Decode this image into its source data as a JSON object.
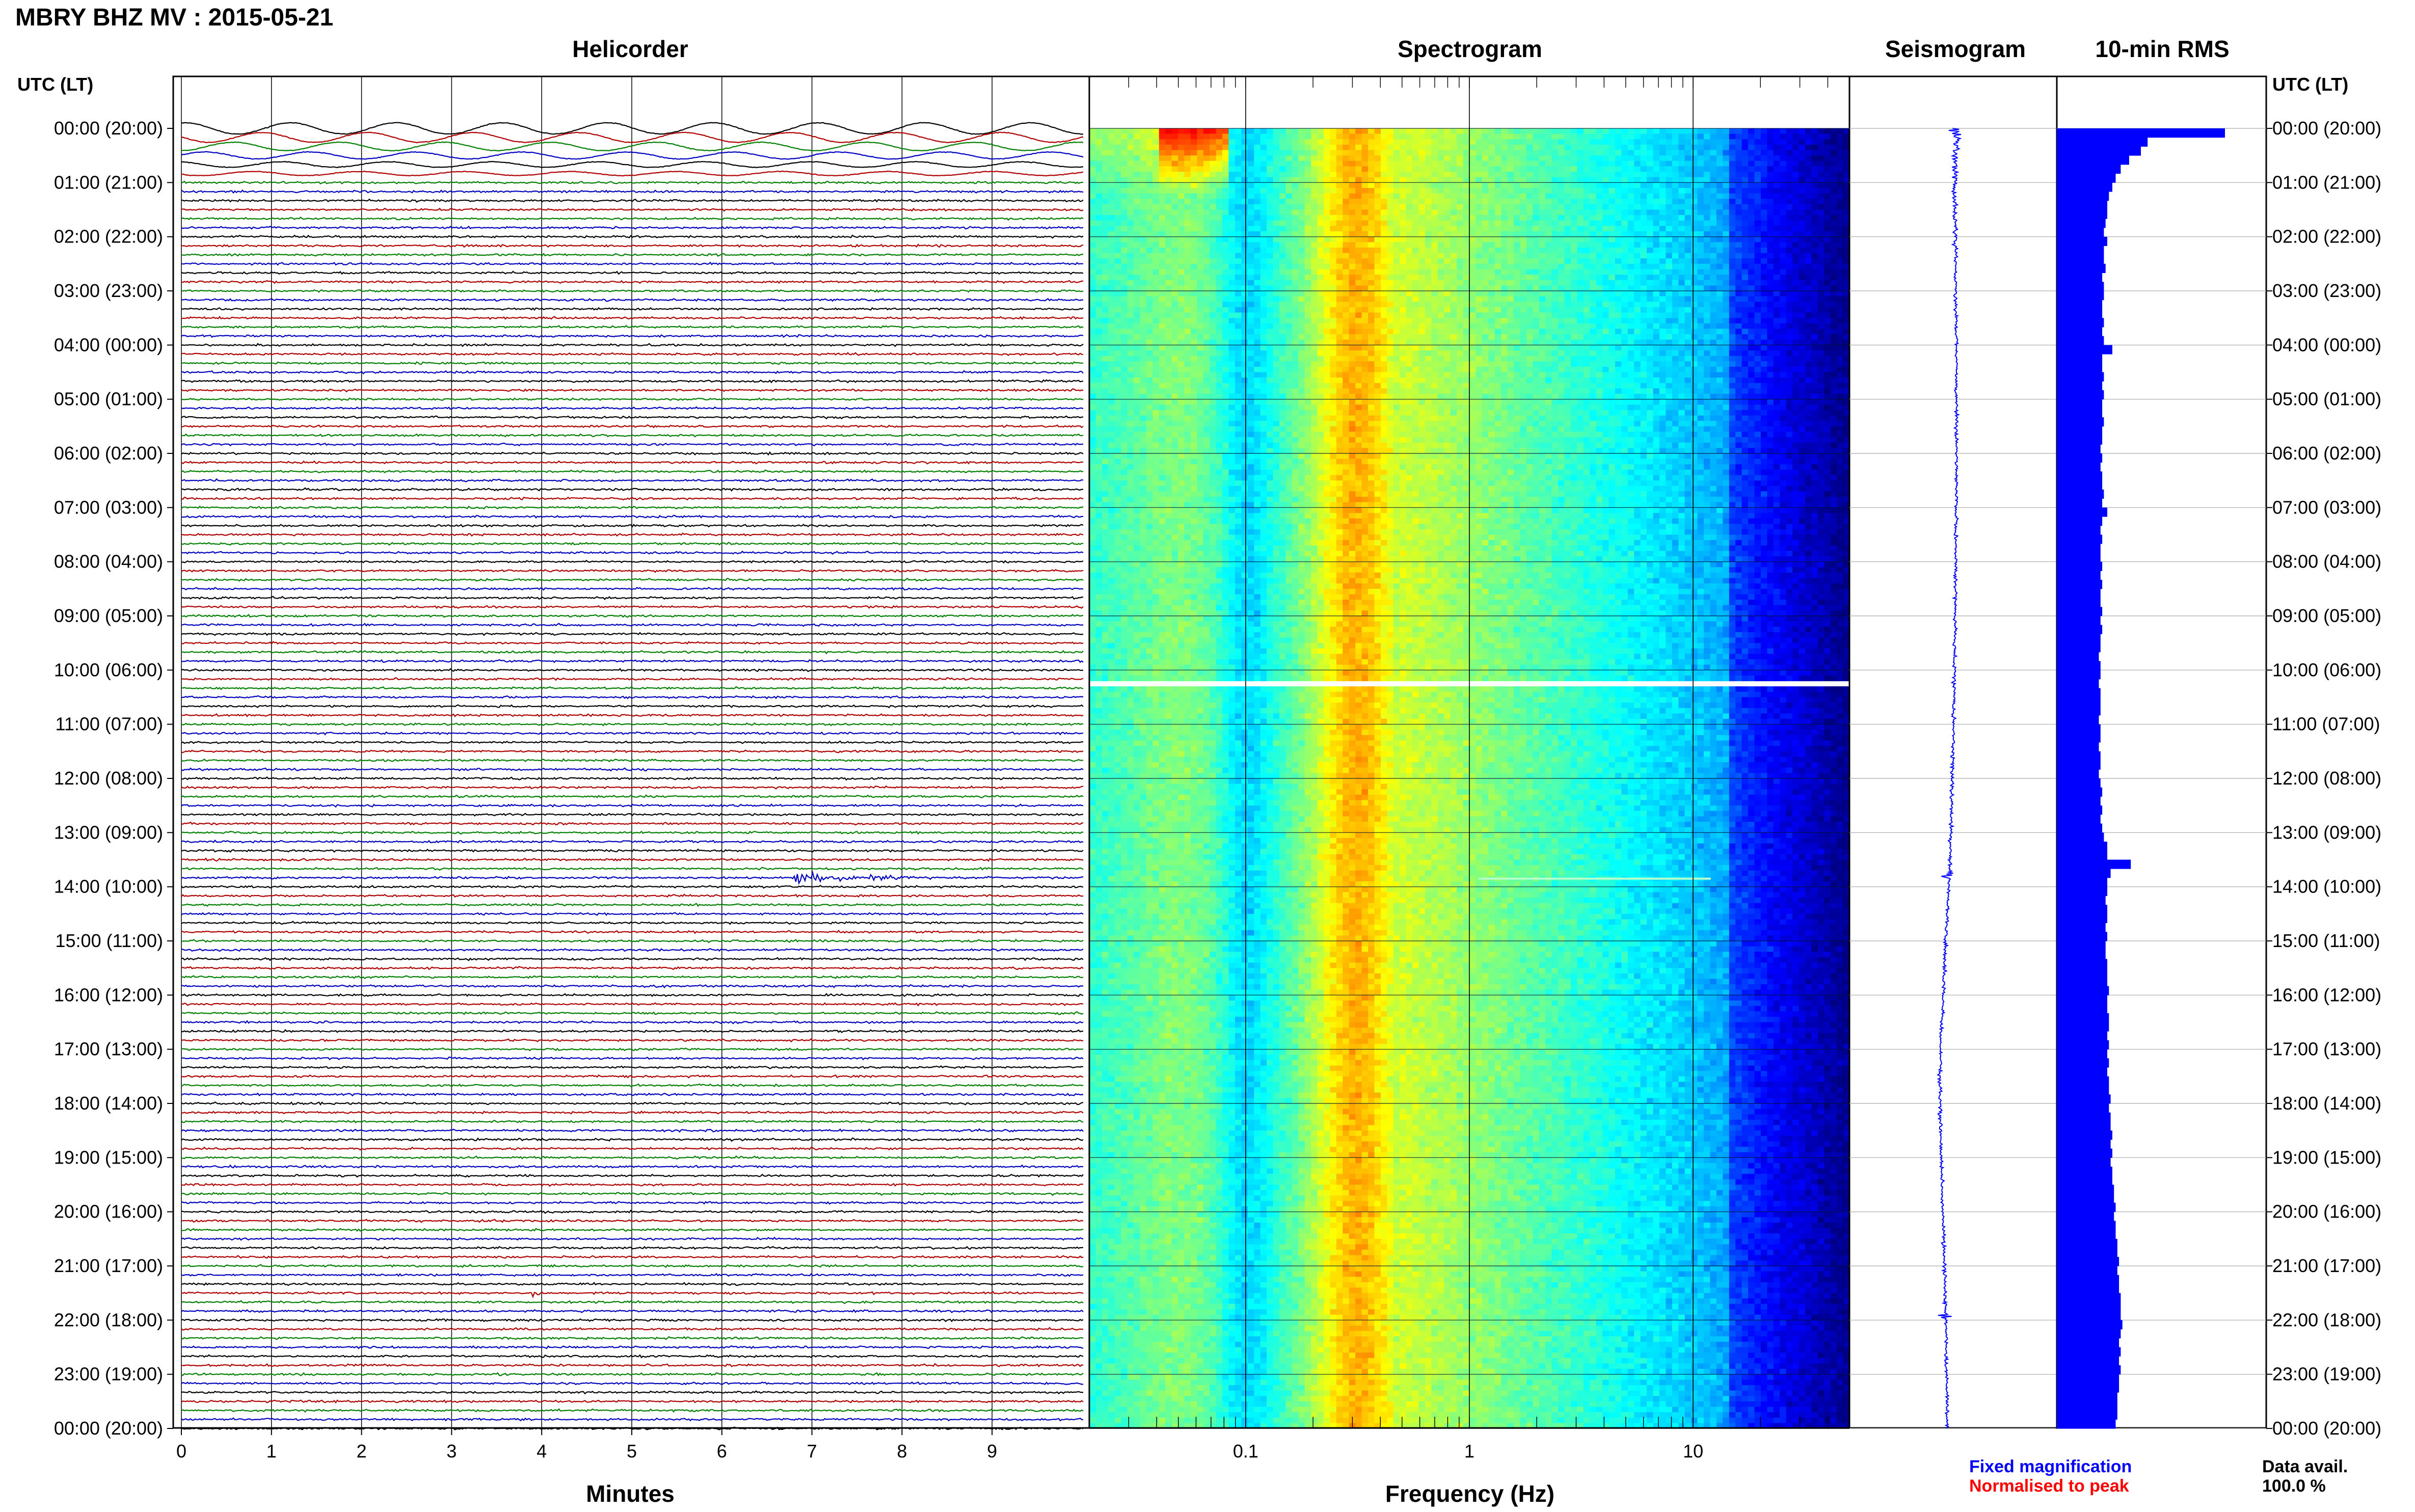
{
  "header": {
    "title": "MBRY BHZ MV : 2015-05-21"
  },
  "panels": {
    "helicorder": "Helicorder",
    "spectrogram": "Spectrogram",
    "seismogram": "Seismogram",
    "rms": "10-min RMS"
  },
  "axes": {
    "left_heading": "UTC (LT)",
    "right_heading": "UTC (LT)",
    "minutes_label": "Minutes",
    "frequency_label": "Frequency (Hz)"
  },
  "legend": {
    "fixed": "Fixed magnification",
    "normalised": "Normalised to peak",
    "avail_label": "Data avail.",
    "avail_value": "100.0 %"
  },
  "colors": {
    "trace_cycle": [
      "#000000",
      "#b00000",
      "#008000",
      "#0000c0"
    ],
    "seismogram": "#0000ff",
    "rms_bar": "#0000ff",
    "fixed_text": "#0000ff",
    "normalised_text": "#ff0000"
  },
  "chart_data": [
    {
      "type": "line",
      "name": "helicorder",
      "title": "Helicorder",
      "xlabel": "Minutes",
      "x_ticks": [
        "0",
        "1",
        "2",
        "3",
        "4",
        "5",
        "6",
        "7",
        "8",
        "9"
      ],
      "xlim": [
        0,
        10
      ],
      "lines_per_hour": 6,
      "hour_labels": [
        "00:00 (20:00)",
        "01:00 (21:00)",
        "02:00 (22:00)",
        "03:00 (23:00)",
        "04:00 (00:00)",
        "05:00 (01:00)",
        "06:00 (02:00)",
        "07:00 (03:00)",
        "08:00 (04:00)",
        "09:00 (05:00)",
        "10:00 (06:00)",
        "11:00 (07:00)",
        "12:00 (08:00)",
        "13:00 (09:00)",
        "14:00 (10:00)",
        "15:00 (11:00)",
        "16:00 (12:00)",
        "17:00 (13:00)",
        "18:00 (14:00)",
        "19:00 (15:00)",
        "20:00 (16:00)",
        "21:00 (17:00)",
        "22:00 (18:00)",
        "23:00 (19:00)",
        "00:00 (20:00)"
      ],
      "events": [
        {
          "hour": 13.8,
          "minute_start": 6.8,
          "minute_end": 8.5
        },
        {
          "hour": 21.5,
          "minute_start": 3.9,
          "minute_end": 4.0
        }
      ]
    },
    {
      "type": "heatmap",
      "name": "spectrogram",
      "title": "Spectrogram",
      "xlabel": "Frequency (Hz)",
      "x_scale": "log",
      "xlim": [
        0.02,
        50
      ],
      "x_ticks": [
        "0.1",
        "1",
        "10"
      ],
      "x_tick_values": [
        0.1,
        1,
        10
      ],
      "gap_hour": 10.2,
      "line_event": {
        "hour": 13.85,
        "f_start": 1.1,
        "f_end": 12
      }
    },
    {
      "type": "line",
      "name": "seismogram",
      "title": "Seismogram",
      "events": [
        13.8,
        21.9
      ]
    },
    {
      "type": "bar",
      "name": "10-min RMS",
      "title": "10-min RMS",
      "bins_per_hour": 6,
      "values": [
        1.0,
        0.54,
        0.5,
        0.43,
        0.38,
        0.35,
        0.33,
        0.31,
        0.3,
        0.3,
        0.29,
        0.28,
        0.3,
        0.28,
        0.28,
        0.29,
        0.27,
        0.28,
        0.28,
        0.27,
        0.27,
        0.28,
        0.27,
        0.28,
        0.33,
        0.27,
        0.27,
        0.28,
        0.27,
        0.28,
        0.27,
        0.27,
        0.28,
        0.27,
        0.27,
        0.26,
        0.27,
        0.26,
        0.27,
        0.27,
        0.28,
        0.27,
        0.3,
        0.27,
        0.26,
        0.27,
        0.26,
        0.26,
        0.27,
        0.26,
        0.27,
        0.26,
        0.26,
        0.27,
        0.26,
        0.27,
        0.26,
        0.26,
        0.25,
        0.26,
        0.26,
        0.25,
        0.26,
        0.26,
        0.26,
        0.25,
        0.26,
        0.26,
        0.25,
        0.26,
        0.26,
        0.25,
        0.26,
        0.27,
        0.26,
        0.27,
        0.26,
        0.27,
        0.28,
        0.3,
        0.3,
        0.44,
        0.32,
        0.3,
        0.3,
        0.29,
        0.3,
        0.3,
        0.29,
        0.3,
        0.29,
        0.29,
        0.3,
        0.3,
        0.3,
        0.31,
        0.3,
        0.3,
        0.31,
        0.31,
        0.3,
        0.31,
        0.3,
        0.31,
        0.3,
        0.31,
        0.31,
        0.32,
        0.31,
        0.32,
        0.32,
        0.33,
        0.32,
        0.33,
        0.32,
        0.33,
        0.33,
        0.34,
        0.34,
        0.35,
        0.34,
        0.35,
        0.35,
        0.36,
        0.36,
        0.37,
        0.36,
        0.37,
        0.37,
        0.38,
        0.38,
        0.38,
        0.39,
        0.38,
        0.37,
        0.38,
        0.37,
        0.38,
        0.37,
        0.37,
        0.36,
        0.36,
        0.36,
        0.35
      ]
    }
  ]
}
